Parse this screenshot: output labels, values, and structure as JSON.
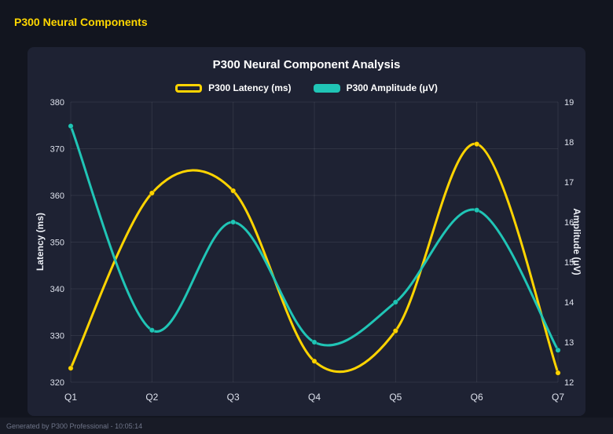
{
  "header": {
    "title": "P300 Neural Components"
  },
  "footer": {
    "text": "Generated by P300 Professional - 10:05:14"
  },
  "colors": {
    "background": "#12151f",
    "panel": "#1e2233",
    "header": "#ffd700",
    "latency": "#ffd400",
    "amplitude": "#20c5b6",
    "grid": "rgba(255,255,255,0.08)",
    "tick_text": "#dde1ec"
  },
  "chart_data": {
    "type": "line",
    "curve": "spline",
    "title": "P300 Neural Component Analysis",
    "categories": [
      "Q1",
      "Q2",
      "Q3",
      "Q4",
      "Q5",
      "Q6",
      "Q7"
    ],
    "series": [
      {
        "name": "P300 Latency (ms)",
        "axis": "left",
        "color": "#ffd400",
        "swatch_filled": false,
        "values": [
          323,
          360.5,
          361,
          324.5,
          331,
          371,
          322
        ]
      },
      {
        "name": "P300 Amplitude (μV)",
        "axis": "right",
        "color": "#20c5b6",
        "swatch_filled": true,
        "values": [
          18.4,
          13.3,
          16.0,
          13.0,
          14.0,
          16.3,
          12.8
        ]
      }
    ],
    "y_left": {
      "label": "Latency (ms)",
      "min": 320,
      "max": 380,
      "step": 10
    },
    "y_right": {
      "label": "Amplitude (μV)",
      "min": 12,
      "max": 19,
      "step": 1
    },
    "grid": true,
    "legend_position": "top"
  }
}
